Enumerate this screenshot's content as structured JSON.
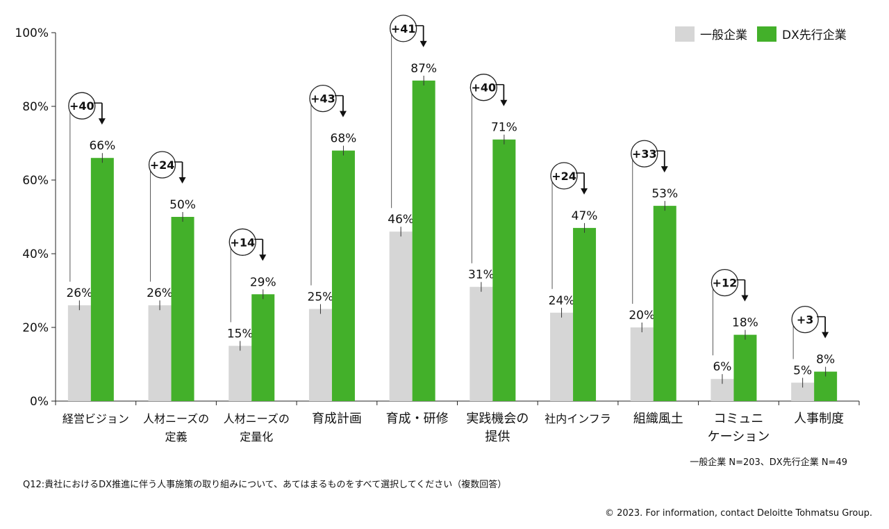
{
  "chart_data": {
    "type": "bar",
    "categories": [
      [
        "経営ビジョン"
      ],
      [
        "人材ニーズの",
        "定義"
      ],
      [
        "人材ニーズの",
        "定量化"
      ],
      [
        "育成計画"
      ],
      [
        "育成・研修"
      ],
      [
        "実践機会の",
        "提供"
      ],
      [
        "社内インフラ"
      ],
      [
        "組織風土"
      ],
      [
        "コミュニ",
        "ケーション"
      ],
      [
        "人事制度"
      ]
    ],
    "series": [
      {
        "name": "一般企業",
        "values": [
          26,
          26,
          15,
          25,
          46,
          31,
          24,
          20,
          6,
          5
        ],
        "labels": [
          "26%",
          "26%",
          "15%",
          "25%",
          "46%",
          "31%",
          "24%",
          "20%",
          "6%",
          "5%"
        ]
      },
      {
        "name": "DX先行企業",
        "values": [
          66,
          50,
          29,
          68,
          87,
          71,
          47,
          53,
          18,
          8
        ],
        "labels": [
          "66%",
          "50%",
          "29%",
          "68%",
          "87%",
          "71%",
          "47%",
          "53%",
          "18%",
          "8%"
        ]
      }
    ],
    "differences": [
      "+40",
      "+24",
      "+14",
      "+43",
      "+41",
      "+40",
      "+24",
      "+33",
      "+12",
      "+3"
    ],
    "ylim": [
      0,
      100
    ],
    "yticks": [
      0,
      20,
      40,
      60,
      80,
      100
    ],
    "ytick_labels": [
      "0%",
      "20%",
      "40%",
      "60%",
      "80%",
      "100%"
    ],
    "colors": {
      "general": "#d6d6d6",
      "dx": "#43b02a"
    },
    "legend_position": "top-right"
  },
  "legend": {
    "general": "一般企業",
    "dx": "DX先行企業"
  },
  "notes": {
    "sample": "一般企業 N=203、DX先行企業 N=49",
    "question": "Q12:貴社におけるDX推進に伴う人事施策の取り組みについて、あてはまるものをすべて選択してください（複数回答）",
    "copyright": "© 2023. For information, contact Deloitte Tohmatsu Group."
  }
}
